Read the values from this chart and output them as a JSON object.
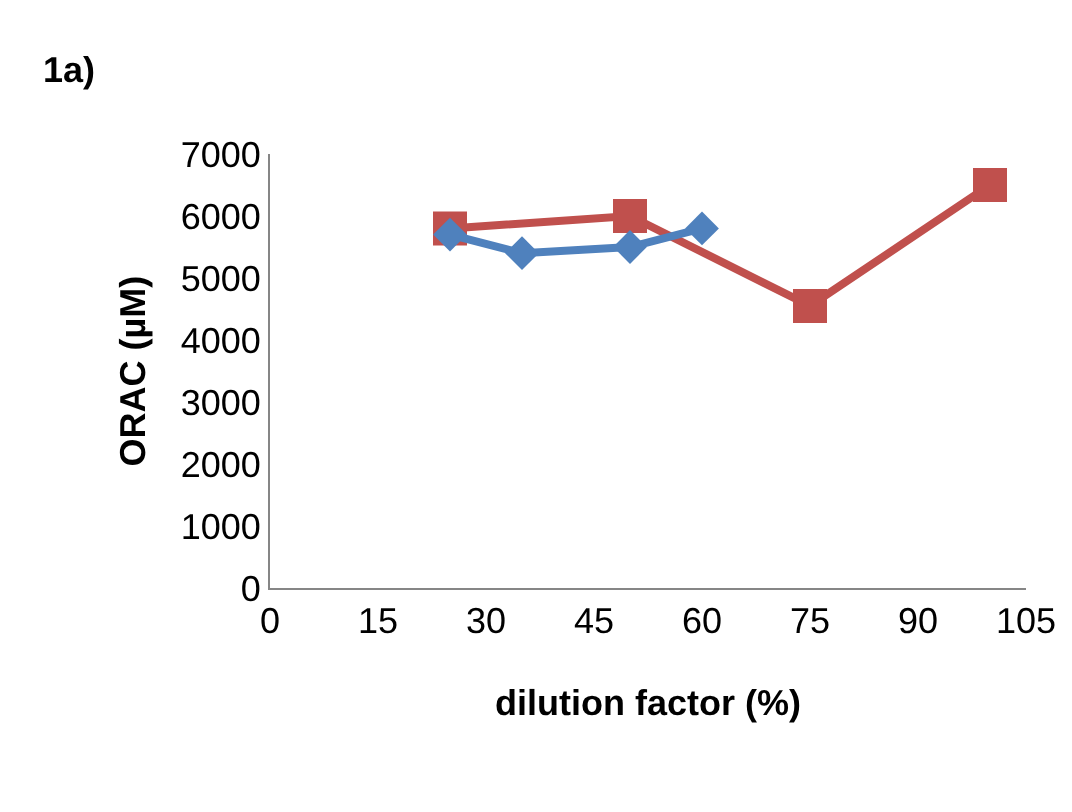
{
  "chart_data": {
    "type": "line",
    "title": "1a)",
    "xlabel": "dilution factor (%)",
    "ylabel": "ORAC (µM)",
    "series": [
      {
        "color": "#c0504d",
        "marker": "square",
        "x": [
          25,
          50,
          75,
          100
        ],
        "values": [
          5800,
          6000,
          4550,
          6500
        ]
      },
      {
        "color": "#4f81bd",
        "marker": "diamond",
        "x": [
          25,
          35,
          50,
          60
        ],
        "values": [
          5700,
          5400,
          5500,
          5800
        ]
      }
    ],
    "xlim": [
      0,
      105
    ],
    "xticks": [
      0,
      15,
      30,
      45,
      60,
      75,
      90,
      105
    ],
    "ylim": [
      0,
      7000
    ],
    "yticks": [
      0,
      1000,
      2000,
      3000,
      4000,
      5000,
      6000,
      7000
    ],
    "grid": false
  }
}
